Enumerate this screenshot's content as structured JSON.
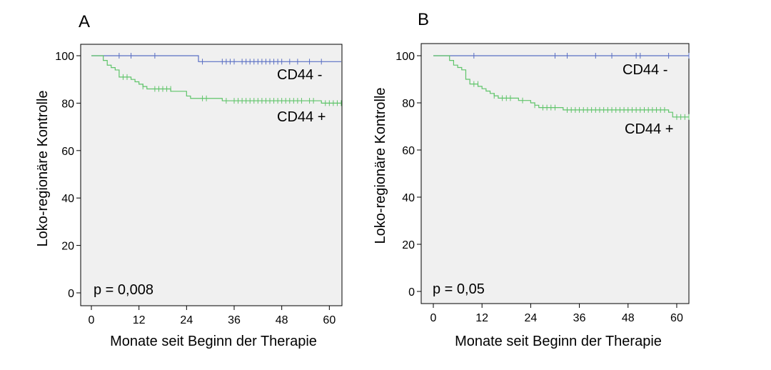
{
  "chart_data": [
    {
      "panel_label": "A",
      "type": "line",
      "subtype": "kaplan-meier",
      "ylabel": "Loko-regionäre Kontrolle",
      "xlabel": "Monate seit Beginn der Therapie",
      "xlim": [
        -2,
        63
      ],
      "ylim": [
        -5,
        105
      ],
      "xticks": [
        0,
        12,
        24,
        36,
        48,
        60
      ],
      "yticks": [
        0,
        20,
        40,
        60,
        80,
        100
      ],
      "annotation": "p = 0,008",
      "series": [
        {
          "name": "CD44 -",
          "color": "#5a6fc4",
          "steps": [
            [
              0,
              100
            ],
            [
              27,
              100
            ],
            [
              27,
              97.5
            ],
            [
              63,
              97.5
            ]
          ],
          "censored": [
            [
              7,
              100
            ],
            [
              10,
              100
            ],
            [
              16,
              100
            ],
            [
              28,
              97.5
            ],
            [
              33,
              97.5
            ],
            [
              34,
              97.5
            ],
            [
              35,
              97.5
            ],
            [
              36,
              97.5
            ],
            [
              38,
              97.5
            ],
            [
              39,
              97.5
            ],
            [
              40,
              97.5
            ],
            [
              41,
              97.5
            ],
            [
              42,
              97.5
            ],
            [
              43,
              97.5
            ],
            [
              44,
              97.5
            ],
            [
              45,
              97.5
            ],
            [
              46,
              97.5
            ],
            [
              47,
              97.5
            ],
            [
              48,
              97.5
            ],
            [
              50,
              97.5
            ],
            [
              52,
              97.5
            ],
            [
              55,
              97.5
            ],
            [
              58,
              97.5
            ]
          ]
        },
        {
          "name": "CD44 +",
          "color": "#5fc46a",
          "steps": [
            [
              0,
              100
            ],
            [
              2,
              100
            ],
            [
              3,
              98
            ],
            [
              4,
              96
            ],
            [
              5,
              95
            ],
            [
              6,
              94
            ],
            [
              7,
              91
            ],
            [
              10,
              90
            ],
            [
              11,
              89
            ],
            [
              12,
              88
            ],
            [
              13,
              87
            ],
            [
              14,
              86
            ],
            [
              20,
              85
            ],
            [
              24,
              83
            ],
            [
              25,
              82
            ],
            [
              33,
              81
            ],
            [
              58,
              80
            ],
            [
              63,
              80
            ]
          ],
          "censored": [
            [
              8,
              91
            ],
            [
              9,
              91
            ],
            [
              13,
              87
            ],
            [
              16,
              86
            ],
            [
              17,
              86
            ],
            [
              18,
              86
            ],
            [
              19,
              86
            ],
            [
              20,
              86
            ],
            [
              28,
              82
            ],
            [
              29,
              82
            ],
            [
              34,
              81
            ],
            [
              36,
              81
            ],
            [
              37,
              81
            ],
            [
              38,
              81
            ],
            [
              39,
              81
            ],
            [
              40,
              81
            ],
            [
              41,
              81
            ],
            [
              42,
              81
            ],
            [
              43,
              81
            ],
            [
              44,
              81
            ],
            [
              45,
              81
            ],
            [
              46,
              81
            ],
            [
              47,
              81
            ],
            [
              48,
              81
            ],
            [
              49,
              81
            ],
            [
              50,
              81
            ],
            [
              51,
              81
            ],
            [
              52,
              81
            ],
            [
              53,
              81
            ],
            [
              55,
              81
            ],
            [
              56,
              81
            ],
            [
              59,
              80
            ],
            [
              60,
              80
            ],
            [
              61,
              80
            ],
            [
              62,
              80
            ],
            [
              63,
              80
            ]
          ]
        }
      ]
    },
    {
      "panel_label": "B",
      "type": "line",
      "subtype": "kaplan-meier",
      "ylabel": "Loko-regionäre Kontrolle",
      "xlabel": "Monate seit Beginn der Therapie",
      "xlim": [
        -2,
        63
      ],
      "ylim": [
        -5,
        105
      ],
      "xticks": [
        0,
        12,
        24,
        36,
        48,
        60
      ],
      "yticks": [
        0,
        20,
        40,
        60,
        80,
        100
      ],
      "annotation": "p = 0,05",
      "series": [
        {
          "name": "CD44 -",
          "color": "#5a6fc4",
          "steps": [
            [
              0,
              100
            ],
            [
              63,
              100
            ]
          ],
          "censored": [
            [
              10,
              100
            ],
            [
              30,
              100
            ],
            [
              33,
              100
            ],
            [
              40,
              100
            ],
            [
              44,
              100
            ],
            [
              50,
              100
            ],
            [
              51,
              100
            ],
            [
              58,
              100
            ],
            [
              63,
              100
            ]
          ]
        },
        {
          "name": "CD44 +",
          "color": "#5fc46a",
          "steps": [
            [
              0,
              100
            ],
            [
              3,
              100
            ],
            [
              4,
              98
            ],
            [
              5,
              96
            ],
            [
              6,
              95
            ],
            [
              7,
              94
            ],
            [
              8,
              90
            ],
            [
              9,
              88
            ],
            [
              11,
              87
            ],
            [
              12,
              86
            ],
            [
              13,
              85
            ],
            [
              14,
              84
            ],
            [
              15,
              83
            ],
            [
              16,
              82
            ],
            [
              21,
              81
            ],
            [
              24,
              80
            ],
            [
              25,
              79
            ],
            [
              26,
              78
            ],
            [
              32,
              77
            ],
            [
              58,
              76
            ],
            [
              59,
              74
            ],
            [
              63,
              74
            ]
          ],
          "censored": [
            [
              10,
              88
            ],
            [
              11,
              88
            ],
            [
              15,
              83
            ],
            [
              17,
              82
            ],
            [
              18,
              82
            ],
            [
              19,
              82
            ],
            [
              22,
              81
            ],
            [
              25,
              79
            ],
            [
              27,
              78
            ],
            [
              28,
              78
            ],
            [
              29,
              78
            ],
            [
              30,
              78
            ],
            [
              33,
              77
            ],
            [
              34,
              77
            ],
            [
              35,
              77
            ],
            [
              36,
              77
            ],
            [
              37,
              77
            ],
            [
              38,
              77
            ],
            [
              39,
              77
            ],
            [
              40,
              77
            ],
            [
              41,
              77
            ],
            [
              42,
              77
            ],
            [
              43,
              77
            ],
            [
              44,
              77
            ],
            [
              45,
              77
            ],
            [
              46,
              77
            ],
            [
              47,
              77
            ],
            [
              48,
              77
            ],
            [
              49,
              77
            ],
            [
              50,
              77
            ],
            [
              51,
              77
            ],
            [
              52,
              77
            ],
            [
              53,
              77
            ],
            [
              54,
              77
            ],
            [
              55,
              77
            ],
            [
              56,
              77
            ],
            [
              57,
              77
            ],
            [
              60,
              74
            ],
            [
              61,
              74
            ],
            [
              62,
              74
            ],
            [
              63,
              74
            ]
          ]
        }
      ]
    }
  ]
}
